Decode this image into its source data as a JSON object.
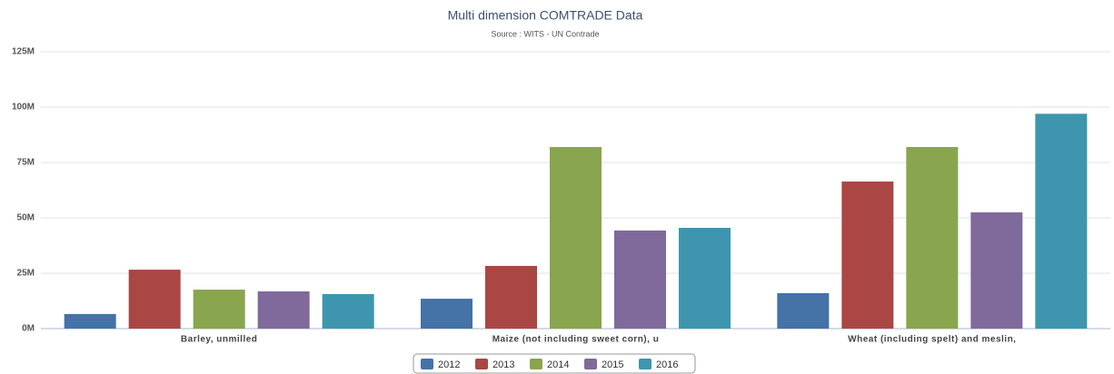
{
  "chart_data": {
    "type": "bar",
    "title": "Multi dimension COMTRADE Data",
    "subtitle": "Source : WITS - UN Contrade",
    "categories": [
      "Barley, unmilled",
      "Maize (not including sweet corn), u",
      "Wheat (including spelt) and meslin,"
    ],
    "series": [
      {
        "name": "2012",
        "color": "#4572a7",
        "values": [
          6.6,
          13.5,
          16
        ]
      },
      {
        "name": "2013",
        "color": "#aa4643",
        "values": [
          26.6,
          28.3,
          66.4
        ]
      },
      {
        "name": "2014",
        "color": "#89a54e",
        "values": [
          17.6,
          82,
          82
        ]
      },
      {
        "name": "2015",
        "color": "#80699b",
        "values": [
          16.8,
          44.3,
          52.5
        ]
      },
      {
        "name": "2016",
        "color": "#3d96ae",
        "values": [
          15.6,
          45.5,
          97
        ]
      }
    ],
    "ylim": [
      0,
      125
    ],
    "yticks": [
      {
        "value": 0,
        "label": "0M"
      },
      {
        "value": 25,
        "label": "25M"
      },
      {
        "value": 50,
        "label": "50M"
      },
      {
        "value": 75,
        "label": "75M"
      },
      {
        "value": 100,
        "label": "100M"
      },
      {
        "value": 125,
        "label": "125M"
      }
    ],
    "grid": true,
    "legend": "bottom"
  }
}
